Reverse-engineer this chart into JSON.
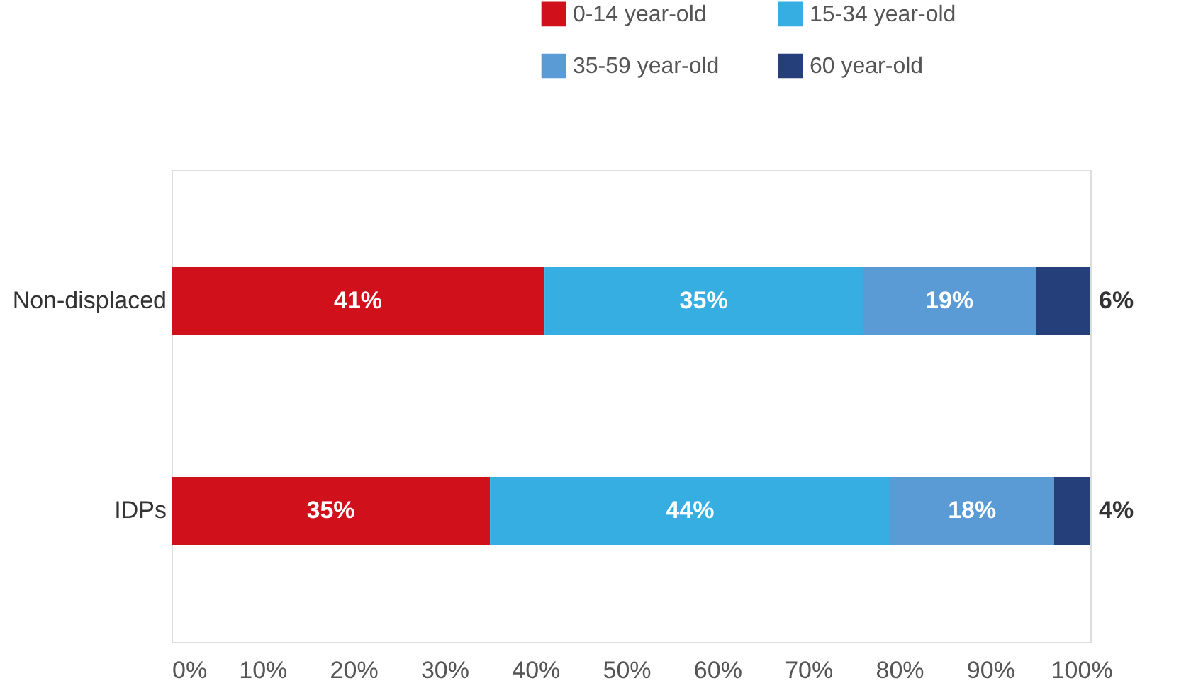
{
  "chart_data": {
    "type": "bar",
    "orientation": "horizontal",
    "stacked": true,
    "categories": [
      "Non-displaced",
      "IDPs"
    ],
    "series": [
      {
        "name": "0-14 year-old",
        "color": "#d0111b",
        "values": [
          41,
          35
        ],
        "value_labels": [
          "41%",
          "35%"
        ]
      },
      {
        "name": "15-34 year-old",
        "color": "#37aee2",
        "values": [
          35,
          44
        ],
        "value_labels": [
          "35%",
          "44%"
        ]
      },
      {
        "name": "35-59 year-old",
        "color": "#5b9bd5",
        "values": [
          19,
          18
        ],
        "value_labels": [
          "19%",
          "18%"
        ]
      },
      {
        "name": "60 year-old",
        "color": "#243f7a",
        "values": [
          6,
          4
        ],
        "value_labels": [
          "6%",
          "4%"
        ]
      }
    ],
    "xlim": [
      0,
      101
    ],
    "xticks": [
      {
        "value": 0,
        "label": "0%"
      },
      {
        "value": 10,
        "label": "10%"
      },
      {
        "value": 20,
        "label": "20%"
      },
      {
        "value": 30,
        "label": "30%"
      },
      {
        "value": 40,
        "label": "40%"
      },
      {
        "value": 50,
        "label": "50%"
      },
      {
        "value": 60,
        "label": "60%"
      },
      {
        "value": 70,
        "label": "70%"
      },
      {
        "value": 80,
        "label": "80%"
      },
      {
        "value": 90,
        "label": "90%"
      },
      {
        "value": 100,
        "label": "100%"
      }
    ],
    "grid": false,
    "legend": "top right"
  }
}
